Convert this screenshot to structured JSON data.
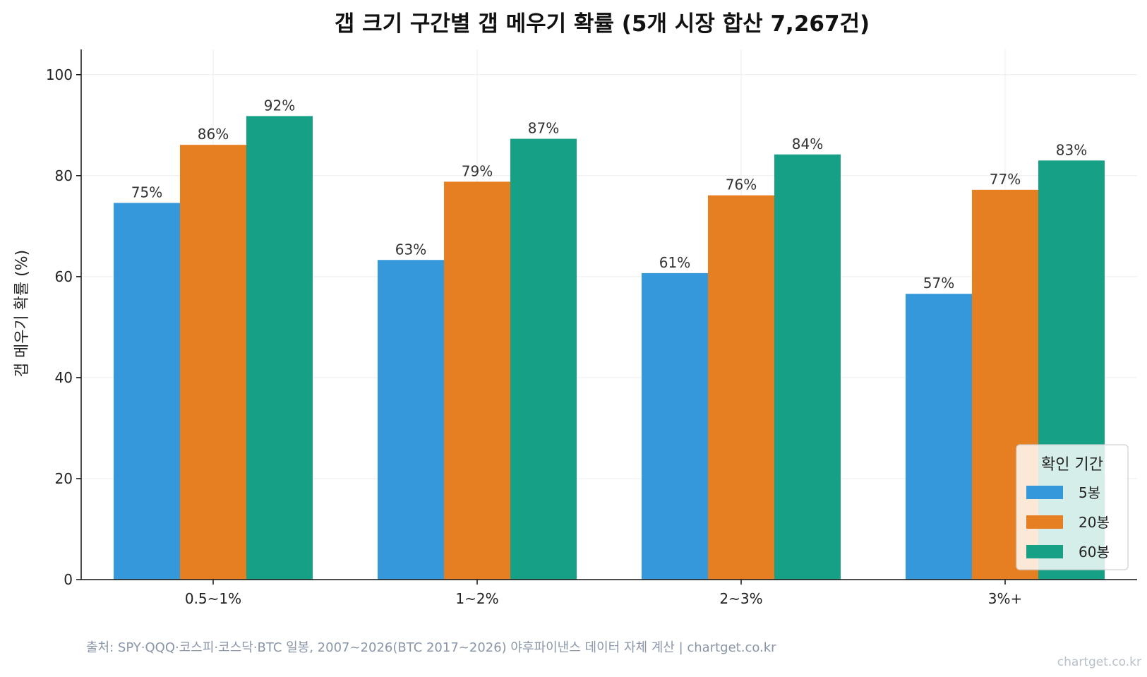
{
  "chart_data": {
    "type": "bar",
    "title": "갭 크기 구간별 갭 메우기 확률 (5개 시장 합산 7,267건)",
    "xlabel": "",
    "ylabel": "갭 메우기 확률 (%)",
    "ylim": [
      0,
      105
    ],
    "yticks": [
      0,
      20,
      40,
      60,
      80,
      100
    ],
    "categories": [
      "0.5~1%",
      "1~2%",
      "2~3%",
      "3%+"
    ],
    "series": [
      {
        "name": "5봉",
        "color": "#3498db",
        "values": [
          74.6,
          63.3,
          60.7,
          56.6
        ],
        "labels": [
          "75%",
          "63%",
          "61%",
          "57%"
        ]
      },
      {
        "name": "20봉",
        "color": "#e67e22",
        "values": [
          86.1,
          78.8,
          76.1,
          77.2
        ],
        "labels": [
          "86%",
          "79%",
          "76%",
          "77%"
        ]
      },
      {
        "name": "60봉",
        "color": "#16a085",
        "values": [
          91.8,
          87.3,
          84.2,
          83.0
        ],
        "labels": [
          "92%",
          "87%",
          "84%",
          "83%"
        ]
      }
    ],
    "legend": {
      "title": "확인 기간",
      "position": "bottom-right"
    },
    "grid": true
  },
  "source_text": "출처: SPY·QQQ·코스피·코스닥·BTC 일봉, 2007~2026(BTC 2017~2026) 야후파이낸스 데이터 자체 계산 | chartget.co.kr",
  "watermark": "chartget.co.kr"
}
